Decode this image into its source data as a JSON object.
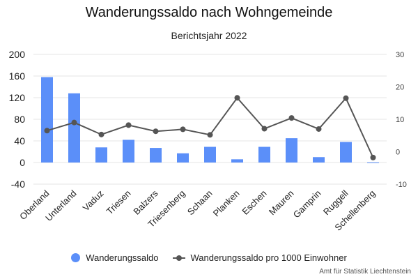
{
  "chart_data": {
    "type": "bar",
    "title": "Wanderungssaldo nach Wohngemeinde",
    "subtitle": "Berichtsjahr 2022",
    "categories": [
      "Oberland",
      "Unterland",
      "Vaduz",
      "Triesen",
      "Balzers",
      "Triesenberg",
      "Schaan",
      "Planken",
      "Eschen",
      "Mauren",
      "Gamprin",
      "Ruggell",
      "Schellenberg"
    ],
    "series": [
      {
        "name": "Wanderungssaldo",
        "type": "bar",
        "axis": "left",
        "color": "#5b8ff9",
        "values": [
          158,
          128,
          28,
          42,
          27,
          17,
          29,
          6,
          29,
          45,
          10,
          38,
          -1
        ]
      },
      {
        "name": "Wanderungssaldo pro 1000 Einwohner",
        "type": "line",
        "axis": "right",
        "color": "#555555",
        "values": [
          6.5,
          9,
          5.3,
          8.2,
          6.3,
          6.9,
          5.2,
          16.6,
          7.1,
          10.4,
          7,
          16.5,
          -1.8
        ]
      }
    ],
    "y_left": {
      "min": -40,
      "max": 200,
      "ticks": [
        -40,
        0,
        40,
        80,
        120,
        160,
        200
      ]
    },
    "y_right": {
      "min": -10,
      "max": 30,
      "ticks": [
        -10,
        0,
        10,
        20,
        30
      ]
    },
    "grid": true,
    "legend_position": "bottom",
    "source": "Amt für Statistik Liechtenstein"
  }
}
